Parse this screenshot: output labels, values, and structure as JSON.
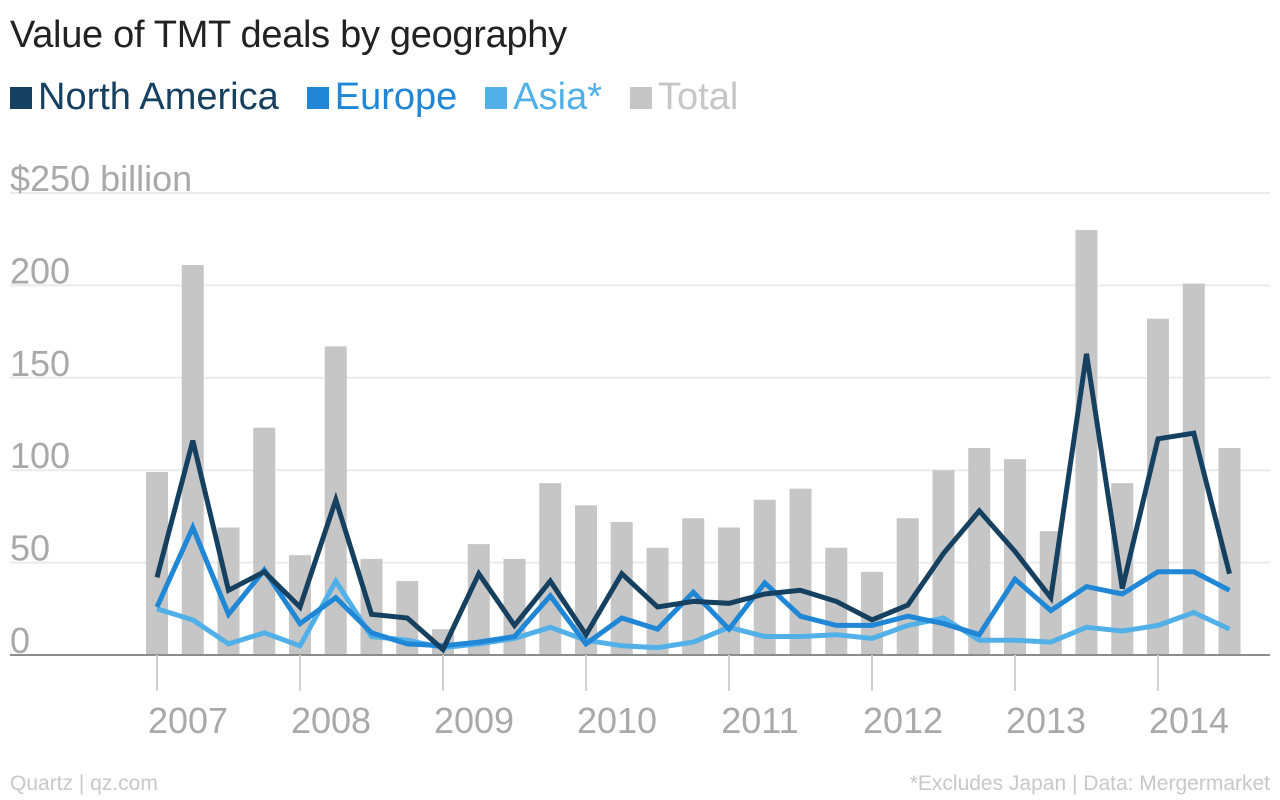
{
  "title": "Value of TMT deals by geography",
  "legend": [
    {
      "label": "North America",
      "color": "#16405f"
    },
    {
      "label": "Europe",
      "color": "#1f87d6"
    },
    {
      "label": "Asia*",
      "color": "#52b0e8"
    },
    {
      "label": "Total",
      "color": "#c6c6c6"
    }
  ],
  "footer": {
    "source_left": "Quartz | qz.com",
    "source_right": "*Excludes Japan | Data: Mergermarket"
  },
  "chart_data": {
    "type": "bar+line",
    "title": "Value of TMT deals by geography",
    "x_unit": "quarter",
    "x_years": [
      "2007",
      "2008",
      "2009",
      "2010",
      "2011",
      "2012",
      "2013",
      "2014"
    ],
    "y_unit": "$ billion",
    "ylim": [
      0,
      250
    ],
    "y_ticks": [
      {
        "value": 0,
        "label": "0"
      },
      {
        "value": 50,
        "label": "50"
      },
      {
        "value": 100,
        "label": "100"
      },
      {
        "value": 150,
        "label": "150"
      },
      {
        "value": 200,
        "label": "200"
      },
      {
        "value": 250,
        "label": "$250 billion"
      }
    ],
    "grid": true,
    "legend_position": "top-left",
    "quarters": [
      "Q1 2007",
      "Q2 2007",
      "Q3 2007",
      "Q4 2007",
      "Q1 2008",
      "Q2 2008",
      "Q3 2008",
      "Q4 2008",
      "Q1 2009",
      "Q2 2009",
      "Q3 2009",
      "Q4 2009",
      "Q1 2010",
      "Q2 2010",
      "Q3 2010",
      "Q4 2010",
      "Q1 2011",
      "Q2 2011",
      "Q3 2011",
      "Q4 2011",
      "Q1 2012",
      "Q2 2012",
      "Q3 2012",
      "Q4 2012",
      "Q1 2013",
      "Q2 2013",
      "Q3 2013",
      "Q4 2013",
      "Q1 2014",
      "Q2 2014",
      "Q3 2014"
    ],
    "series": [
      {
        "name": "Total",
        "kind": "bar",
        "values": [
          99,
          211,
          69,
          123,
          54,
          167,
          52,
          40,
          14,
          60,
          52,
          93,
          81,
          72,
          58,
          74,
          69,
          84,
          90,
          58,
          45,
          74,
          100,
          112,
          106,
          67,
          230,
          93,
          182,
          201,
          112
        ]
      },
      {
        "name": "North America",
        "kind": "line",
        "values": [
          42,
          116,
          35,
          45,
          26,
          84,
          22,
          20,
          3,
          44,
          16,
          40,
          11,
          44,
          26,
          29,
          28,
          33,
          35,
          29,
          19,
          27,
          55,
          78,
          56,
          31,
          163,
          36,
          117,
          120,
          44
        ]
      },
      {
        "name": "Europe",
        "kind": "line",
        "values": [
          26,
          69,
          22,
          46,
          17,
          31,
          12,
          6,
          5,
          7,
          10,
          32,
          6,
          20,
          14,
          34,
          14,
          39,
          21,
          16,
          16,
          21,
          17,
          11,
          41,
          24,
          37,
          33,
          45,
          45,
          35
        ]
      },
      {
        "name": "Asia*",
        "kind": "line",
        "values": [
          25,
          19,
          6,
          12,
          5,
          40,
          10,
          8,
          4,
          6,
          9,
          15,
          8,
          5,
          4,
          7,
          15,
          10,
          10,
          11,
          9,
          16,
          20,
          8,
          8,
          7,
          15,
          13,
          16,
          23,
          14
        ]
      }
    ]
  }
}
